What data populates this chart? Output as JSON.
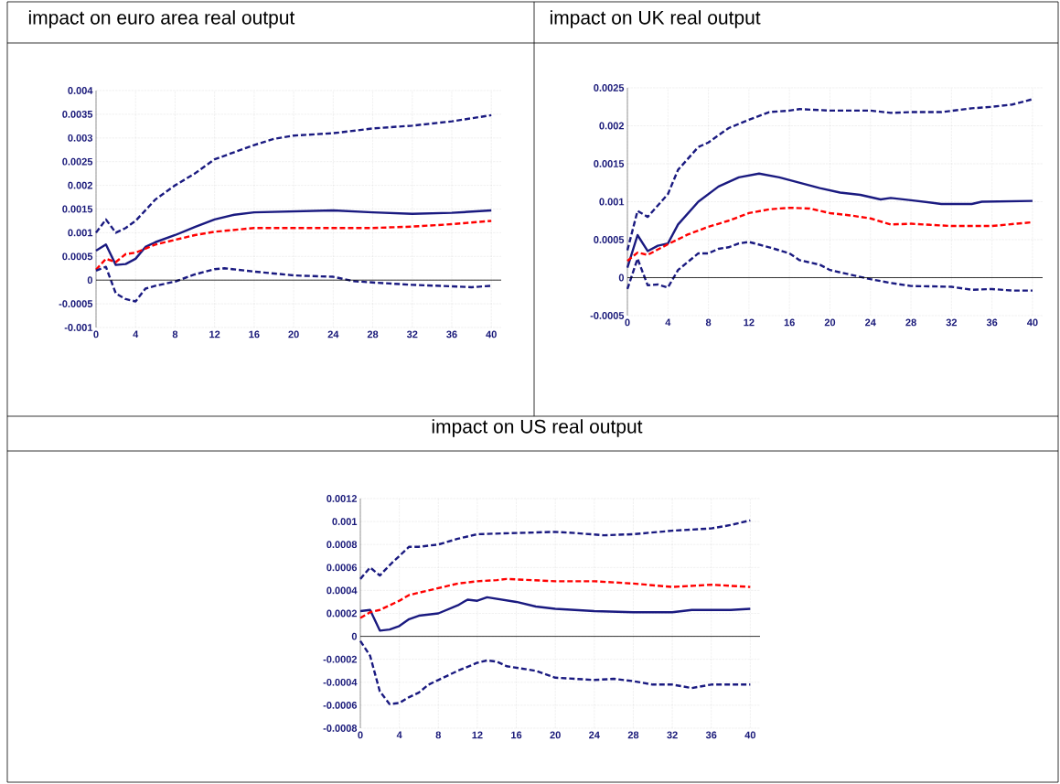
{
  "chart_data": [
    {
      "type": "line",
      "title": "impact on euro area real output",
      "ref_lines": [
        {
          "axis": "y",
          "value": 0,
          "color": "#000000"
        }
      ],
      "xlim": [
        0,
        41
      ],
      "ylim": [
        -0.001,
        0.004
      ],
      "xticks": [
        0,
        4,
        8,
        12,
        16,
        20,
        24,
        28,
        32,
        36,
        40
      ],
      "yticks": [
        -0.001,
        -0.0005,
        0,
        0.0005,
        0.001,
        0.0015,
        0.002,
        0.0025,
        0.003,
        0.0035,
        0.004
      ],
      "grid": true,
      "marker": "none",
      "series": [
        {
          "color": "#1a1a80",
          "line_style": "dashed",
          "x": [
            0,
            1,
            2,
            3,
            4,
            6,
            8,
            10,
            12,
            14,
            16,
            18,
            20,
            24,
            28,
            32,
            36,
            40
          ],
          "values": [
            0.001,
            0.00128,
            0.001,
            0.0011,
            0.00125,
            0.0017,
            0.002,
            0.00225,
            0.00255,
            0.0027,
            0.00285,
            0.00298,
            0.00305,
            0.0031,
            0.0032,
            0.00326,
            0.00335,
            0.00348
          ]
        },
        {
          "color": "#1a1a80",
          "line_style": "solid",
          "x": [
            0,
            1,
            2,
            3,
            4,
            5,
            6,
            8,
            10,
            12,
            14,
            16,
            20,
            24,
            28,
            32,
            36,
            40
          ],
          "values": [
            0.00062,
            0.00075,
            0.00032,
            0.00034,
            0.00045,
            0.0007,
            0.0008,
            0.00095,
            0.00112,
            0.00128,
            0.00138,
            0.00143,
            0.00145,
            0.00147,
            0.00143,
            0.0014,
            0.00142,
            0.00147
          ]
        },
        {
          "color": "#ff0000",
          "line_style": "dashed",
          "x": [
            0,
            1,
            2,
            3,
            4,
            6,
            8,
            10,
            12,
            16,
            20,
            24,
            28,
            32,
            36,
            40
          ],
          "values": [
            0.00022,
            0.00045,
            0.00038,
            0.00055,
            0.00058,
            0.00075,
            0.00085,
            0.00095,
            0.00102,
            0.0011,
            0.0011,
            0.0011,
            0.0011,
            0.00113,
            0.00118,
            0.00125
          ]
        },
        {
          "color": "#1a1a80",
          "line_style": "dashed",
          "x": [
            0,
            1,
            2,
            3,
            4,
            5,
            6,
            8,
            10,
            12,
            13,
            16,
            20,
            24,
            26,
            28,
            32,
            36,
            38,
            40
          ],
          "values": [
            0.0002,
            0.00028,
            -0.00028,
            -0.0004,
            -0.00045,
            -0.00018,
            -0.00012,
            -3e-05,
            0.00012,
            0.00023,
            0.00025,
            0.00018,
            0.0001,
            7e-05,
            -2e-05,
            -5e-05,
            -0.0001,
            -0.00013,
            -0.00015,
            -0.00012
          ]
        }
      ]
    },
    {
      "type": "line",
      "title": "impact on UK real output",
      "ref_lines": [
        {
          "axis": "y",
          "value": 0,
          "color": "#000000"
        }
      ],
      "xlim": [
        0,
        41
      ],
      "ylim": [
        -0.0005,
        0.0025
      ],
      "xticks": [
        0,
        4,
        8,
        12,
        16,
        20,
        24,
        28,
        32,
        36,
        40
      ],
      "yticks": [
        -0.0005,
        0,
        0.0005,
        0.001,
        0.0015,
        0.002,
        0.0025
      ],
      "grid": true,
      "marker": "none",
      "series": [
        {
          "color": "#1a1a80",
          "line_style": "dashed",
          "x": [
            0,
            1,
            2,
            4,
            5,
            7,
            8,
            10,
            12,
            14,
            16,
            17,
            20,
            24,
            26,
            28,
            31,
            34,
            36,
            38,
            40
          ],
          "values": [
            0.00036,
            0.00088,
            0.0008,
            0.0011,
            0.00142,
            0.00172,
            0.00178,
            0.00197,
            0.00208,
            0.00218,
            0.0022,
            0.00222,
            0.0022,
            0.0022,
            0.00217,
            0.00218,
            0.00218,
            0.00223,
            0.00225,
            0.00228,
            0.00235
          ]
        },
        {
          "color": "#1a1a80",
          "line_style": "solid",
          "x": [
            0,
            1,
            2,
            3,
            4,
            5,
            7,
            9,
            11,
            13,
            15,
            17,
            19,
            21,
            23,
            25,
            26,
            28,
            31,
            34,
            35,
            40
          ],
          "values": [
            0.00013,
            0.00056,
            0.00035,
            0.00042,
            0.00045,
            0.0007,
            0.001,
            0.0012,
            0.00132,
            0.00137,
            0.00132,
            0.00125,
            0.00118,
            0.00112,
            0.00109,
            0.00103,
            0.00105,
            0.00102,
            0.00097,
            0.00097,
            0.001,
            0.00101
          ]
        },
        {
          "color": "#ff0000",
          "line_style": "dashed",
          "x": [
            0,
            1,
            2,
            4,
            6,
            8,
            10,
            12,
            14,
            16,
            18,
            20,
            22,
            24,
            26,
            28,
            32,
            36,
            40
          ],
          "values": [
            0.00022,
            0.00033,
            0.0003,
            0.00044,
            0.00057,
            0.00067,
            0.00075,
            0.00085,
            0.0009,
            0.00092,
            0.00091,
            0.00085,
            0.00082,
            0.00078,
            0.0007,
            0.00071,
            0.00068,
            0.00068,
            0.00073
          ]
        },
        {
          "color": "#1a1a80",
          "line_style": "dashed",
          "x": [
            0,
            1,
            2,
            3,
            4,
            5,
            7,
            8,
            9,
            10,
            11,
            12,
            14,
            16,
            17,
            19,
            20,
            22,
            24,
            26,
            28,
            32,
            34,
            36,
            38,
            40
          ],
          "values": [
            -0.00015,
            0.00025,
            -0.0001,
            -9e-05,
            -0.00013,
            0.0001,
            0.00032,
            0.00032,
            0.00038,
            0.0004,
            0.00045,
            0.00047,
            0.0004,
            0.00032,
            0.00023,
            0.00017,
            0.0001,
            4e-05,
            -2e-05,
            -7e-05,
            -0.00011,
            -0.00012,
            -0.00016,
            -0.00015,
            -0.00017,
            -0.00017
          ]
        }
      ]
    },
    {
      "type": "line",
      "title": "impact on US real output",
      "ref_lines": [
        {
          "axis": "y",
          "value": 0,
          "color": "#000000"
        }
      ],
      "xlim": [
        0,
        41
      ],
      "ylim": [
        -0.0008,
        0.0012
      ],
      "xticks": [
        0,
        4,
        8,
        12,
        16,
        20,
        24,
        28,
        32,
        36,
        40
      ],
      "yticks": [
        -0.0008,
        -0.0006,
        -0.0004,
        -0.0002,
        0,
        0.0002,
        0.0004,
        0.0006,
        0.0008,
        0.001,
        0.0012
      ],
      "grid": true,
      "marker": "none",
      "series": [
        {
          "color": "#1a1a80",
          "line_style": "dashed",
          "x": [
            0,
            1,
            2,
            3,
            5,
            6,
            8,
            10,
            12,
            16,
            20,
            22,
            25,
            28,
            32,
            36,
            38,
            40
          ],
          "values": [
            0.0005,
            0.0006,
            0.00053,
            0.00062,
            0.00078,
            0.00078,
            0.0008,
            0.00085,
            0.00089,
            0.0009,
            0.00091,
            0.0009,
            0.00088,
            0.00089,
            0.00092,
            0.00094,
            0.00097,
            0.00101
          ]
        },
        {
          "color": "#1a1a80",
          "line_style": "solid",
          "x": [
            0,
            1,
            2,
            3,
            4,
            5,
            6,
            8,
            10,
            11,
            12,
            13,
            16,
            18,
            20,
            24,
            28,
            32,
            34,
            38,
            40
          ],
          "values": [
            0.00022,
            0.00023,
            5e-05,
            6e-05,
            9e-05,
            0.00015,
            0.00018,
            0.0002,
            0.00027,
            0.00032,
            0.00031,
            0.00034,
            0.0003,
            0.00026,
            0.00024,
            0.00022,
            0.00021,
            0.00021,
            0.00023,
            0.00023,
            0.00024
          ]
        },
        {
          "color": "#ff0000",
          "line_style": "dashed",
          "x": [
            0,
            1,
            2,
            4,
            5,
            7,
            8,
            10,
            12,
            14,
            15,
            20,
            24,
            28,
            32,
            36,
            38,
            40
          ],
          "values": [
            0.00016,
            0.00021,
            0.00023,
            0.00031,
            0.00036,
            0.0004,
            0.00042,
            0.00046,
            0.00048,
            0.00049,
            0.0005,
            0.00048,
            0.00048,
            0.00046,
            0.00043,
            0.00045,
            0.00044,
            0.00043
          ]
        },
        {
          "color": "#1a1a80",
          "line_style": "dashed",
          "x": [
            0,
            1,
            2,
            3,
            4,
            5,
            6,
            7,
            8,
            10,
            12,
            13,
            14,
            15,
            18,
            20,
            24,
            26,
            28,
            30,
            32,
            34,
            36,
            40
          ],
          "values": [
            -4e-05,
            -0.00017,
            -0.00048,
            -0.00059,
            -0.00058,
            -0.00053,
            -0.00049,
            -0.00042,
            -0.00038,
            -0.0003,
            -0.00023,
            -0.00021,
            -0.00022,
            -0.00026,
            -0.0003,
            -0.00036,
            -0.00038,
            -0.00037,
            -0.00039,
            -0.00042,
            -0.00042,
            -0.00045,
            -0.00042,
            -0.00042
          ]
        }
      ]
    }
  ]
}
